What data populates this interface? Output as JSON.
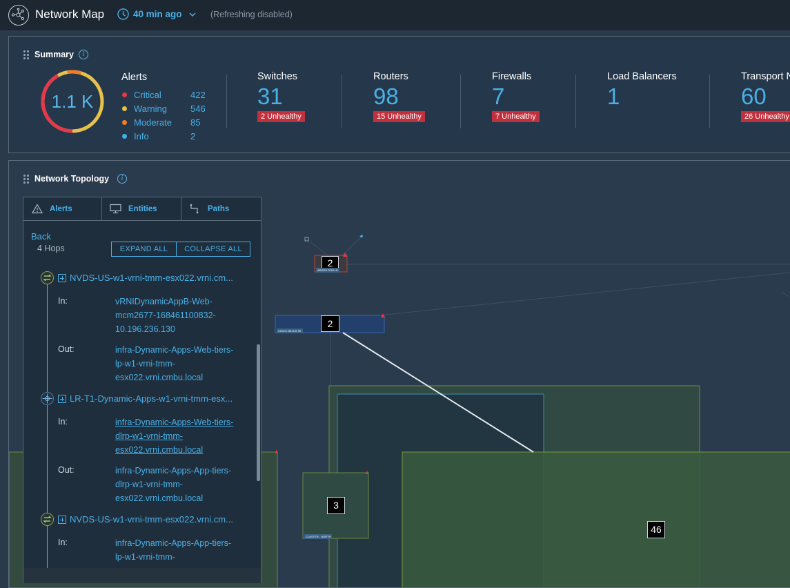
{
  "header": {
    "title": "Network Map",
    "time": "40 min ago",
    "refresh": "(Refreshing  disabled)"
  },
  "summary": {
    "title": "Summary",
    "total_alerts": "1.1 K",
    "alerts_heading": "Alerts",
    "alerts": [
      {
        "name": "Critical",
        "count": "422",
        "color": "#e8374a"
      },
      {
        "name": "Warning",
        "count": "546",
        "color": "#e8c14a"
      },
      {
        "name": "Moderate",
        "count": "85",
        "color": "#f07d2a"
      },
      {
        "name": "Info",
        "count": "2",
        "color": "#3fb3e8"
      }
    ],
    "stats": [
      {
        "label": "Switches",
        "value": "31",
        "badge": "2 Unhealthy"
      },
      {
        "label": "Routers",
        "value": "98",
        "badge": "15 Unhealthy"
      },
      {
        "label": "Firewalls",
        "value": "7",
        "badge": "7 Unhealthy"
      },
      {
        "label": "Load Balancers",
        "value": "1",
        "badge": ""
      },
      {
        "label": "Transport N",
        "value": "60",
        "badge": "26 Unhealthy"
      }
    ]
  },
  "topology": {
    "title": "Network Topology",
    "tabs": [
      "Alerts",
      "Entities",
      "Paths"
    ],
    "back": "Back",
    "hops": "4 Hops",
    "expand_all": "EXPAND ALL",
    "collapse_all": "COLLAPSE ALL",
    "hop_items": [
      {
        "title": "NVDS-US-w1-vrni-tmm-esx022.vrni.cm...",
        "in_label": "In:",
        "in_lines": [
          "vRNIDynamicAppB-Web-",
          "mcm2677-168461100832-",
          "10.196.236.130"
        ],
        "out_label": "Out:",
        "out_lines": [
          "infra-Dynamic-Apps-Web-tiers-",
          "lp-w1-vrni-tmm-",
          "esx022.vrni.cmbu.local"
        ]
      },
      {
        "title": "LR-T1-Dynamic-Apps-w1-vrni-tmm-esx...",
        "in_label": "In:",
        "in_lines": [
          "infra-Dynamic-Apps-Web-tiers-",
          "dlrp-w1-vrni-tmm-",
          "esx022.vrni.cmbu.local"
        ],
        "out_label": "Out:",
        "out_lines": [
          "infra-Dynamic-Apps-App-tiers-",
          "dlrp-w1-vrni-tmm-",
          "esx022.vrni.cmbu.local"
        ]
      },
      {
        "title": "NVDS-US-w1-vrni-tmm-esx022.vrni.cm...",
        "in_label": "In:",
        "in_lines": [
          "infra-Dynamic-Apps-App-tiers-",
          "lp-w1-vrni-tmm-"
        ]
      }
    ],
    "nodes": [
      {
        "count": "2",
        "label": "ARISTA 7050 LE"
      },
      {
        "count": "2",
        "label": "CISCO NEXUS 9K"
      },
      {
        "count": "3",
        "label": "CLUSTER - NORTH"
      },
      {
        "count": "46"
      }
    ]
  },
  "colors": {
    "accent": "#49b0e6",
    "critical": "#c0303d",
    "background": "#2b3a4a"
  }
}
